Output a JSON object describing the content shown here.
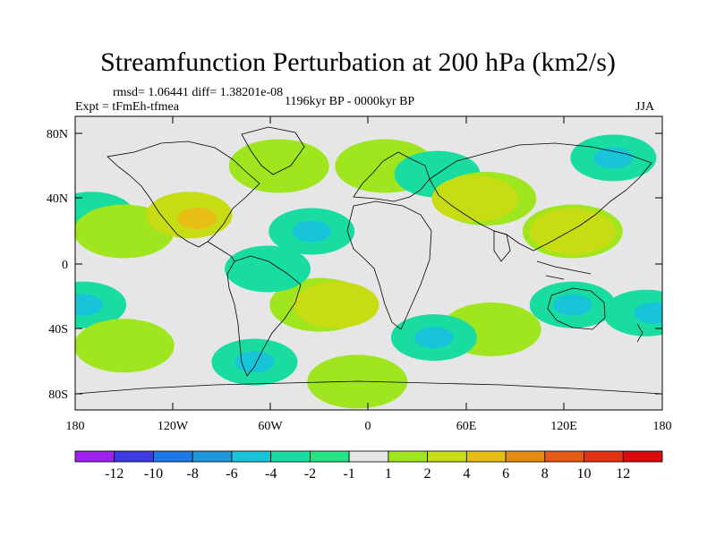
{
  "title": "Streamfunction Perturbation at 200 hPa (km2/s)",
  "stats": "rmsd= 1.06441  diff= 1.38201e-08",
  "expt": "Expt = tFmEh-tfmea",
  "period": "1196kyr BP - 0000kyr BP",
  "season": "JJA",
  "lat_labels": [
    "80N",
    "40N",
    "0",
    "40S",
    "80S"
  ],
  "lon_labels": [
    "180",
    "120W",
    "60W",
    "0",
    "60E",
    "120E",
    "180"
  ],
  "colorbar": {
    "labels": [
      "-12",
      "-10",
      "-8",
      "-6",
      "-4",
      "-2",
      "-1",
      "1",
      "2",
      "4",
      "6",
      "8",
      "10",
      "12"
    ],
    "colors": [
      "#a020f0",
      "#3c3ce6",
      "#1e78e6",
      "#1e96dc",
      "#18c4d8",
      "#18dca0",
      "#22e484",
      "#e6e6e6",
      "#a0e61e",
      "#c8dc14",
      "#e6be14",
      "#e68c14",
      "#e65a14",
      "#e63214",
      "#dc0a0a"
    ]
  },
  "map": {
    "land_color": "#e6e6e6",
    "anomalies": [
      {
        "name": "north-pacific-neg",
        "lon": -170,
        "lat": 30,
        "value": -2
      },
      {
        "name": "alaska-pos",
        "lon": -150,
        "lat": 20,
        "value": 1
      },
      {
        "name": "central-america-pos",
        "lon": -110,
        "lat": 30,
        "value": 2
      },
      {
        "name": "central-america-core",
        "lon": -105,
        "lat": 28,
        "value": 4
      },
      {
        "name": "east-pacific-neg",
        "lon": -175,
        "lat": -25,
        "value": -2
      },
      {
        "name": "east-pacific-core",
        "lon": -175,
        "lat": -25,
        "value": -4
      },
      {
        "name": "south-pacific-pos",
        "lon": -150,
        "lat": -50,
        "value": 1
      },
      {
        "name": "southern-ocean-neg",
        "lon": -70,
        "lat": -60,
        "value": -2
      },
      {
        "name": "southern-ocean-core",
        "lon": -70,
        "lat": -60,
        "value": -4
      },
      {
        "name": "antarctic-coast-pos",
        "lon": -7,
        "lat": -72,
        "value": 1
      },
      {
        "name": "south-atlantic-pos",
        "lon": -30,
        "lat": -25,
        "value": 1
      },
      {
        "name": "south-atlantic-core",
        "lon": -20,
        "lat": -25,
        "value": 2
      },
      {
        "name": "south-america-neg",
        "lon": -62,
        "lat": -3,
        "value": -2
      },
      {
        "name": "atlantic-neg",
        "lon": -35,
        "lat": 20,
        "value": -2
      },
      {
        "name": "atlantic-core",
        "lon": -35,
        "lat": 20,
        "value": -4
      },
      {
        "name": "greenland-pos",
        "lon": -55,
        "lat": 60,
        "value": 1
      },
      {
        "name": "scandinavia-pos",
        "lon": 10,
        "lat": 60,
        "value": 1
      },
      {
        "name": "arctic-neg",
        "lon": 42,
        "lat": 55,
        "value": -2
      },
      {
        "name": "central-asia-pos",
        "lon": 72,
        "lat": 40,
        "value": 1
      },
      {
        "name": "central-asia-core",
        "lon": 65,
        "lat": 40,
        "value": 2
      },
      {
        "name": "south-indian-pos",
        "lon": 75,
        "lat": -40,
        "value": 1
      },
      {
        "name": "madagascar-neg",
        "lon": 40,
        "lat": -45,
        "value": -2
      },
      {
        "name": "madagascar-core",
        "lon": 40,
        "lat": -45,
        "value": -4
      },
      {
        "name": "west-pacific-pos",
        "lon": 125,
        "lat": 20,
        "value": 1
      },
      {
        "name": "west-pacific-core",
        "lon": 125,
        "lat": 20,
        "value": 2
      },
      {
        "name": "north-pacific-neg-east",
        "lon": 150,
        "lat": 65,
        "value": -2
      },
      {
        "name": "north-pacific-core-east",
        "lon": 150,
        "lat": 65,
        "value": -4
      },
      {
        "name": "australia-neg",
        "lon": 125,
        "lat": -25,
        "value": -2
      },
      {
        "name": "australia-core",
        "lon": 125,
        "lat": -25,
        "value": -4
      },
      {
        "name": "far-east-neg",
        "lon": 170,
        "lat": -30,
        "value": -2
      },
      {
        "name": "far-east-core",
        "lon": 175,
        "lat": -30,
        "value": -4
      }
    ]
  }
}
